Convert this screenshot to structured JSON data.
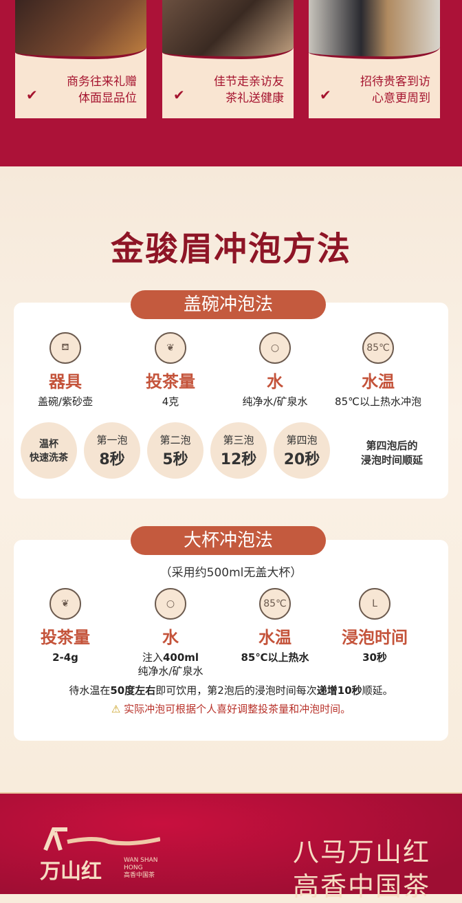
{
  "scenes": [
    {
      "line1": "商务往来礼赠",
      "line2": "体面显品位",
      "photo_color": "#5a3a2c"
    },
    {
      "line1": "佳节走亲访友",
      "line2": "茶礼送健康",
      "photo_color": "#6b5040"
    },
    {
      "line1": "招待贵客到访",
      "line2": "心意更周到",
      "photo_color": "#8a8078"
    }
  ],
  "check_glyph": "✔",
  "title": "金骏眉冲泡方法",
  "method1": {
    "name": "盖碗冲泡法",
    "items": [
      {
        "icon": "gaiwan-icon",
        "glyph": "⛾",
        "label": "器具",
        "value": "盖碗/紫砂壶"
      },
      {
        "icon": "leaf-icon",
        "glyph": "❦",
        "label": "投茶量",
        "value": "4克"
      },
      {
        "icon": "water-drop-icon",
        "glyph": "💧",
        "label": "水",
        "value": "纯净水/矿泉水"
      },
      {
        "icon": "temperature-icon",
        "glyph": "85℃",
        "label": "水温",
        "value": "85℃以上热水冲泡"
      }
    ],
    "steps": [
      {
        "a": "温杯",
        "b": "快速洗茶"
      },
      {
        "a": "第一泡",
        "b": "8秒"
      },
      {
        "a": "第二泡",
        "b": "5秒"
      },
      {
        "a": "第三泡",
        "b": "12秒"
      },
      {
        "a": "第四泡",
        "b": "20秒"
      }
    ],
    "after": {
      "l1": "第四泡后的",
      "l2": "浸泡时间顺延"
    }
  },
  "method2": {
    "name": "大杯冲泡法",
    "subtitle": "（采用约500ml无盖大杯）",
    "items": [
      {
        "icon": "leaf-icon",
        "glyph": "❦",
        "label": "投茶量",
        "value": "2-4g"
      },
      {
        "icon": "water-drop-icon",
        "glyph": "💧",
        "label": "水",
        "value_pre": "注入",
        "value_bold": "400ml",
        "value2": "纯净水/矿泉水"
      },
      {
        "icon": "temperature-icon",
        "glyph": "85℃",
        "label": "水温",
        "value": "85℃以上热水"
      },
      {
        "icon": "clock-icon",
        "glyph": "L",
        "label": "浸泡时间",
        "value": "30秒"
      }
    ],
    "note": {
      "p1": "待水温在",
      "b1": "50度左右",
      "p2": "即可饮用，第2泡后的浸泡时间每次",
      "b2": "递增10秒",
      "p3": "顺延。"
    },
    "warning": "实际冲泡可根据个人喜好调整投茶量和冲泡时间。"
  },
  "footer": {
    "brand": "万山红",
    "brand_en1": "WAN SHAN",
    "brand_en2": "HONG",
    "brand_sub": "高香中国茶",
    "slogan1": "八马万山红",
    "slogan2": "高香中国茶"
  },
  "colors": {
    "red": "#ac1238",
    "accent": "#c4533a",
    "cream": "#f8ecdc"
  }
}
